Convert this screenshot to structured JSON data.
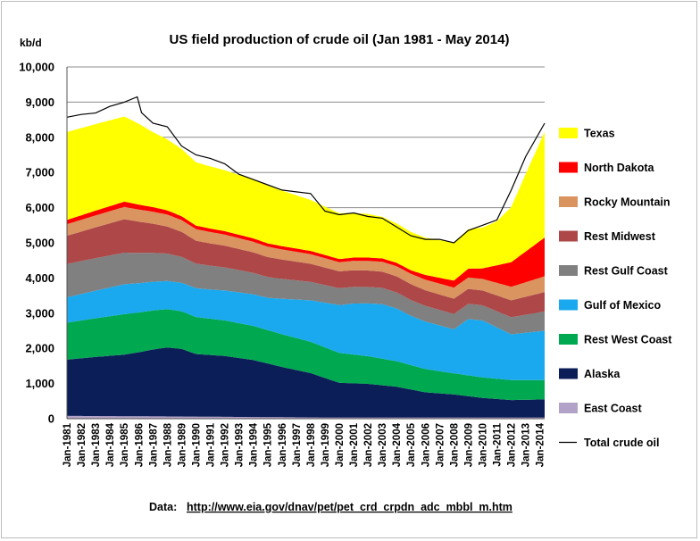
{
  "chart_data": {
    "type": "area",
    "title": "US field production of crude oil (Jan 1981 - May 2014)",
    "ylabel": "kb/d",
    "xlabel": "",
    "ylim": [
      0,
      10000
    ],
    "y_ticks": [
      "0",
      "1,000",
      "2,000",
      "3,000",
      "4,000",
      "5,000",
      "6,000",
      "7,000",
      "8,000",
      "9,000",
      "10,000"
    ],
    "x_tick_labels": [
      "Jan-1981",
      "Jan-1982",
      "Jan-1983",
      "Jan-1984",
      "Jan-1985",
      "Jan-1986",
      "Jan-1987",
      "Jan-1988",
      "Jan-1989",
      "Jan-1990",
      "Jan-1991",
      "Jan-1992",
      "Jan-1993",
      "Jan-1994",
      "Jan-1995",
      "Jan-1996",
      "Jan-1997",
      "Jan-1998",
      "Jan-1999",
      "Jan-2000",
      "Jan-2001",
      "Jan-2002",
      "Jan-2003",
      "Jan-2004",
      "Jan-2005",
      "Jan-2006",
      "Jan-2007",
      "Jan-2008",
      "Jan-2009",
      "Jan-2010",
      "Jan-2011",
      "Jan-2012",
      "Jan-2013",
      "Jan-2014"
    ],
    "x_start_year": 1981,
    "x_end_year": 2014.33,
    "grid": "horizontal",
    "legend_position": "right",
    "stack_order": [
      "East Coast",
      "Alaska",
      "Rest West Coast",
      "Gulf of Mexico",
      "Rest Gulf Coast",
      "Rest Midwest",
      "Rocky Mountain",
      "North Dakota",
      "Texas"
    ],
    "series": [
      {
        "name": "East Coast",
        "color": "#b3a2c7",
        "x": [
          1981,
          1990,
          2000,
          2010,
          2014.33
        ],
        "values": [
          80,
          60,
          30,
          30,
          30
        ]
      },
      {
        "name": "Alaska",
        "color": "#0c1e58",
        "x": [
          1981,
          1983,
          1985,
          1986,
          1987,
          1988,
          1989,
          1990,
          1992,
          1994,
          1996,
          1998,
          2000,
          2002,
          2004,
          2006,
          2008,
          2010,
          2012,
          2014.33
        ],
        "values": [
          1600,
          1680,
          1750,
          1820,
          1900,
          1960,
          1920,
          1780,
          1730,
          1620,
          1430,
          1260,
          990,
          960,
          880,
          720,
          660,
          560,
          500,
          520
        ]
      },
      {
        "name": "Rest West Coast",
        "color": "#00a850",
        "x": [
          1981,
          1985,
          1990,
          2000,
          2008,
          2014.33
        ],
        "values": [
          1050,
          1150,
          1050,
          850,
          600,
          550
        ]
      },
      {
        "name": "Gulf of Mexico",
        "color": "#1aa9ee",
        "x": [
          1981,
          1985,
          1988,
          1991,
          1995,
          1998,
          2001,
          2003,
          2004,
          2005,
          2006,
          2008,
          2009,
          2010,
          2012,
          2014.33
        ],
        "values": [
          720,
          850,
          800,
          830,
          920,
          1180,
          1450,
          1550,
          1500,
          1400,
          1350,
          1250,
          1600,
          1620,
          1300,
          1400
        ]
      },
      {
        "name": "Rest Gulf Coast",
        "color": "#808080",
        "x": [
          1981,
          1985,
          1990,
          2000,
          2005,
          2010,
          2014.33
        ],
        "values": [
          950,
          900,
          700,
          480,
          450,
          430,
          550
        ]
      },
      {
        "name": "Rest Midwest",
        "color": "#ae4747",
        "x": [
          1981,
          1985,
          1990,
          2000,
          2010,
          2014.33
        ],
        "values": [
          800,
          950,
          650,
          480,
          420,
          550
        ]
      },
      {
        "name": "Rocky Mountain",
        "color": "#d99460",
        "x": [
          1981,
          1985,
          1990,
          2000,
          2010,
          2014.33
        ],
        "values": [
          330,
          350,
          330,
          260,
          330,
          450
        ]
      },
      {
        "name": "North Dakota",
        "color": "#ff0000",
        "x": [
          1981,
          1985,
          1990,
          2000,
          2005,
          2008,
          2010,
          2012,
          2014.33
        ],
        "values": [
          120,
          150,
          100,
          90,
          100,
          200,
          300,
          700,
          1100
        ]
      },
      {
        "name": "Texas",
        "color": "#ffff00",
        "x": [
          1981,
          1983,
          1985,
          1986,
          1987,
          1990,
          1993,
          1995,
          1998,
          2000,
          2002,
          2004,
          2006,
          2008,
          2010,
          2011,
          2012,
          2013,
          2014.33
        ],
        "values": [
          2500,
          2460,
          2420,
          2300,
          2130,
          1800,
          1700,
          1640,
          1450,
          1300,
          1240,
          1120,
          1060,
          1080,
          1160,
          1250,
          1570,
          2200,
          3000
        ]
      },
      {
        "name": "Total crude oil",
        "color": "#000000",
        "type": "line",
        "x": [
          1981,
          1982,
          1983,
          1984,
          1985,
          1985.9,
          1986.2,
          1987,
          1988,
          1989,
          1990,
          1991,
          1992,
          1993,
          1994,
          1995,
          1996,
          1997,
          1998,
          1999,
          2000,
          2001,
          2002,
          2003,
          2004,
          2005,
          2006,
          2007,
          2008,
          2009,
          2010,
          2011,
          2012,
          2013,
          2014.33
        ],
        "values": [
          8570,
          8650,
          8690,
          8880,
          9000,
          9150,
          8700,
          8400,
          8300,
          7750,
          7500,
          7400,
          7250,
          6950,
          6800,
          6650,
          6500,
          6450,
          6400,
          5900,
          5800,
          5850,
          5750,
          5700,
          5450,
          5200,
          5100,
          5100,
          5000,
          5350,
          5500,
          5650,
          6500,
          7450,
          8400
        ]
      }
    ],
    "source_label": "Data:",
    "source_url": "http://www.eia.gov/dnav/pet/pet_crd_crpdn_adc_mbbl_m.htm"
  }
}
